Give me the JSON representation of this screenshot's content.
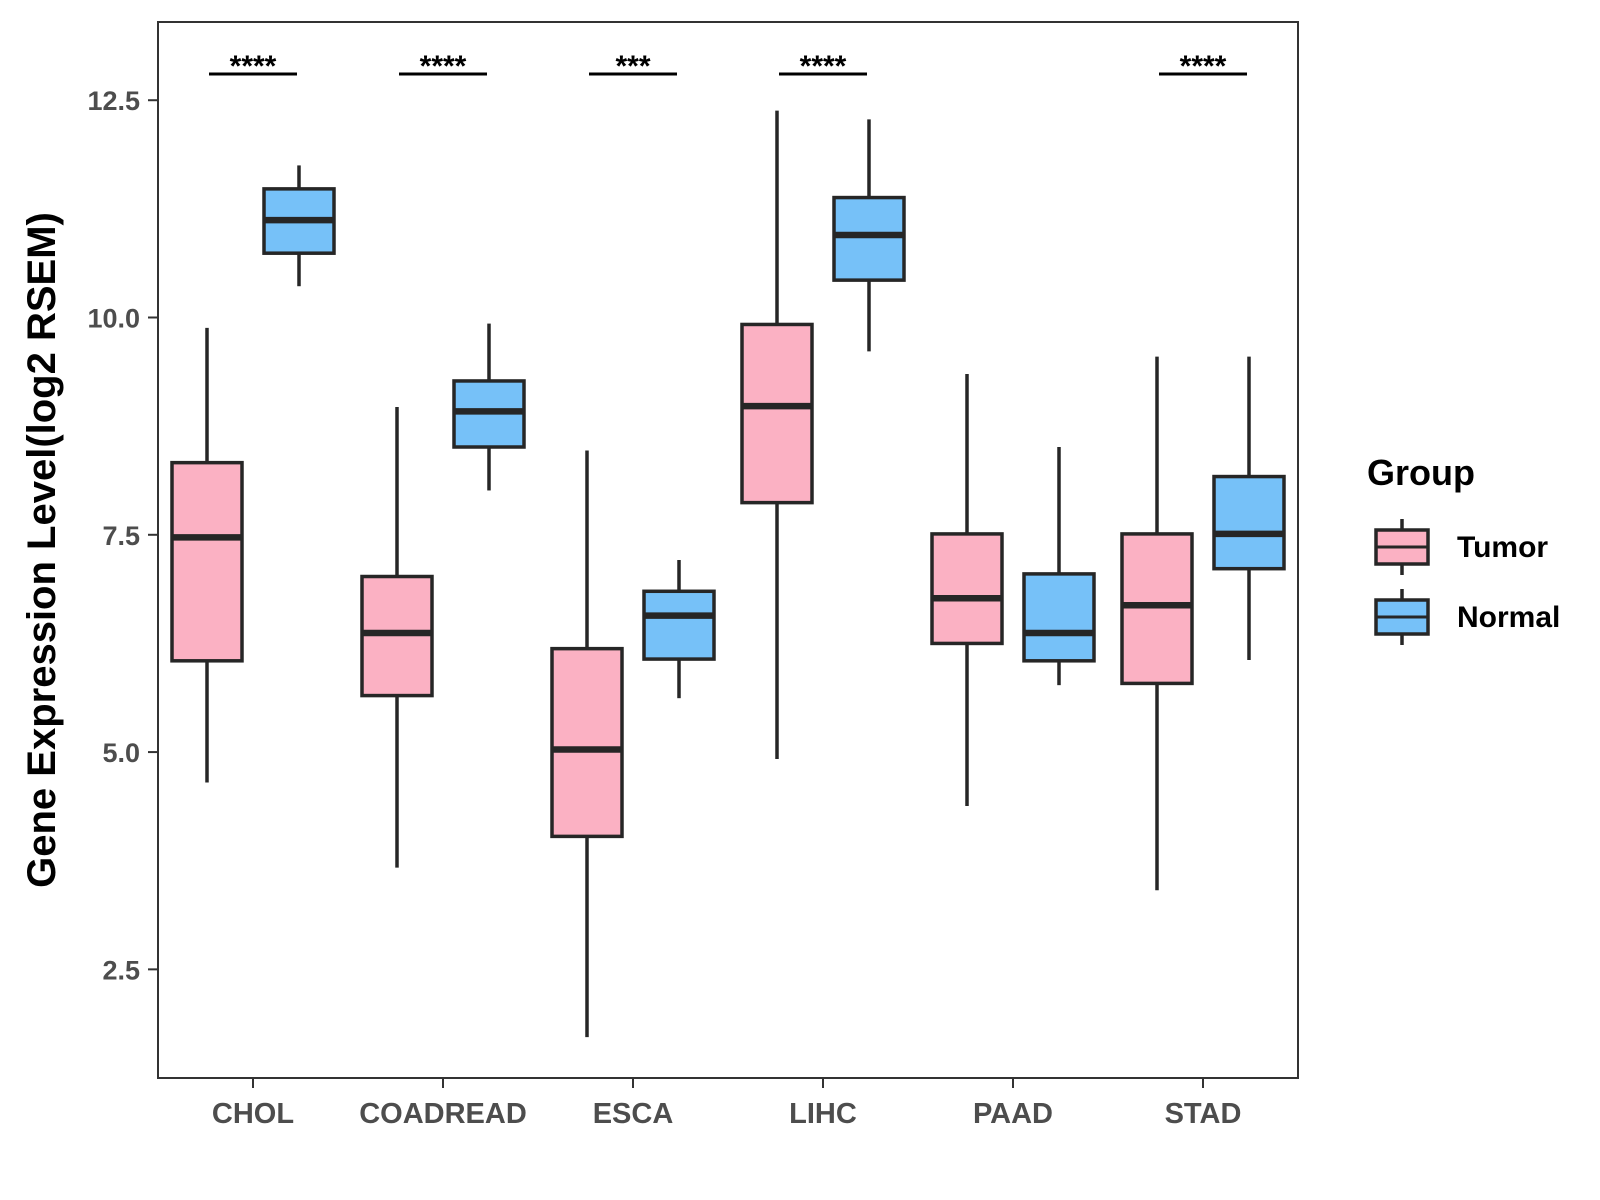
{
  "chart_data": {
    "type": "boxplot",
    "title": "",
    "xlabel": "",
    "ylabel": "Gene Expression Level(log2 RSEM)",
    "ylim": [
      1.25,
      13.4
    ],
    "yticks": [
      2.5,
      5.0,
      7.5,
      10.0,
      12.5
    ],
    "ytick_labels": [
      "2.5",
      "5.0",
      "7.5",
      "10.0",
      "12.5"
    ],
    "categories": [
      "CHOL",
      "COADREAD",
      "ESCA",
      "LIHC",
      "PAAD",
      "STAD"
    ],
    "series": [
      {
        "name": "Tumor",
        "color": "#FBB1C3",
        "boxes": [
          {
            "min": 4.65,
            "q1": 6.05,
            "median": 7.47,
            "q3": 8.33,
            "max": 9.88
          },
          {
            "min": 3.67,
            "q1": 5.65,
            "median": 6.37,
            "q3": 7.02,
            "max": 8.97
          },
          {
            "min": 1.72,
            "q1": 4.03,
            "median": 5.03,
            "q3": 6.19,
            "max": 8.47
          },
          {
            "min": 4.92,
            "q1": 7.87,
            "median": 8.98,
            "q3": 9.92,
            "max": 12.38
          },
          {
            "min": 4.38,
            "q1": 6.25,
            "median": 6.77,
            "q3": 7.51,
            "max": 9.35
          },
          {
            "min": 3.41,
            "q1": 5.79,
            "median": 6.69,
            "q3": 7.51,
            "max": 9.55
          }
        ]
      },
      {
        "name": "Normal",
        "color": "#76C1F8",
        "boxes": [
          {
            "min": 10.36,
            "q1": 10.74,
            "median": 11.12,
            "q3": 11.48,
            "max": 11.75
          },
          {
            "min": 8.01,
            "q1": 8.51,
            "median": 8.92,
            "q3": 9.27,
            "max": 9.93
          },
          {
            "min": 5.62,
            "q1": 6.07,
            "median": 6.57,
            "q3": 6.85,
            "max": 7.21
          },
          {
            "min": 9.61,
            "q1": 10.43,
            "median": 10.95,
            "q3": 11.38,
            "max": 12.28
          },
          {
            "min": 5.77,
            "q1": 6.05,
            "median": 6.37,
            "q3": 7.05,
            "max": 8.51
          },
          {
            "min": 6.06,
            "q1": 7.11,
            "median": 7.51,
            "q3": 8.17,
            "max": 9.55
          }
        ]
      }
    ],
    "significance": [
      "****",
      "****",
      "***",
      "****",
      "",
      "****"
    ],
    "legend": {
      "title": "Group",
      "position": "right",
      "entries": [
        "Tumor",
        "Normal"
      ]
    }
  }
}
